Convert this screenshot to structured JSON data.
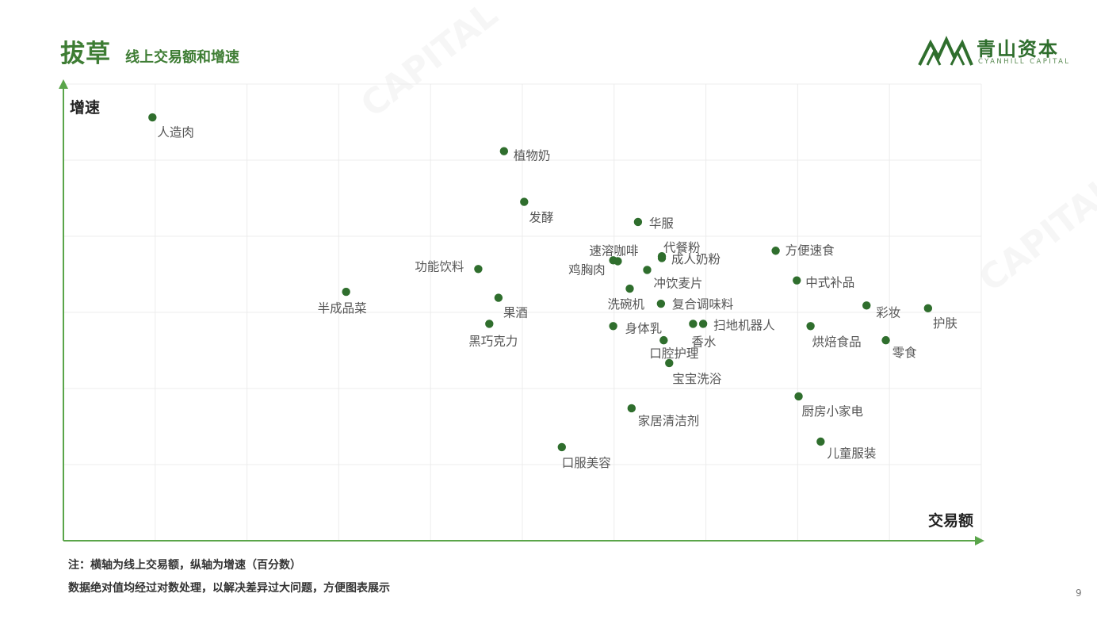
{
  "header": {
    "title": "拔草",
    "subtitle": "线上交易额和增速"
  },
  "logo": {
    "name_cn": "青山资本",
    "name_en": "CYANHILL CAPITAL",
    "brand_color": "#2f6e2d"
  },
  "chart_data": {
    "type": "scatter",
    "xlabel": "交易额",
    "ylabel": "增速",
    "xlim": [
      0,
      100
    ],
    "ylim": [
      0,
      100
    ],
    "grid": true,
    "color": "#2f6e2d",
    "points": [
      {
        "label": "人造肉",
        "x": 9.7,
        "y": 92.7
      },
      {
        "label": "植物奶",
        "x": 48.0,
        "y": 85.3
      },
      {
        "label": "发酵",
        "x": 50.2,
        "y": 74.2
      },
      {
        "label": "华服",
        "x": 62.6,
        "y": 69.8
      },
      {
        "label": "速溶咖啡",
        "x": 60.4,
        "y": 61.2
      },
      {
        "label": "代餐粉",
        "x": 65.2,
        "y": 61.9
      },
      {
        "label": "鸡胸肉",
        "x": 59.9,
        "y": 61.4
      },
      {
        "label": "成人奶粉",
        "x": 65.2,
        "y": 62.3
      },
      {
        "label": "冲饮麦片",
        "x": 63.6,
        "y": 59.3
      },
      {
        "label": "方便速食",
        "x": 77.6,
        "y": 63.5
      },
      {
        "label": "功能饮料",
        "x": 45.2,
        "y": 59.5
      },
      {
        "label": "中式补品",
        "x": 79.9,
        "y": 57.0
      },
      {
        "label": "半成品菜",
        "x": 30.8,
        "y": 54.5
      },
      {
        "label": "洗碗机",
        "x": 61.7,
        "y": 55.2
      },
      {
        "label": "果酒",
        "x": 47.4,
        "y": 53.2
      },
      {
        "label": "复合调味料",
        "x": 65.1,
        "y": 51.9
      },
      {
        "label": "彩妆",
        "x": 87.5,
        "y": 51.5
      },
      {
        "label": "护肤",
        "x": 94.2,
        "y": 50.9
      },
      {
        "label": "黑巧克力",
        "x": 46.4,
        "y": 47.5
      },
      {
        "label": "身体乳",
        "x": 59.9,
        "y": 47.0
      },
      {
        "label": "扫地机器人",
        "x": 69.7,
        "y": 47.5
      },
      {
        "label": "香水",
        "x": 68.6,
        "y": 47.5
      },
      {
        "label": "烘焙食品",
        "x": 81.4,
        "y": 47.0
      },
      {
        "label": "口腔护理",
        "x": 65.4,
        "y": 43.9
      },
      {
        "label": "零食",
        "x": 89.6,
        "y": 43.9
      },
      {
        "label": "宝宝洗浴",
        "x": 66.0,
        "y": 38.9
      },
      {
        "label": "厨房小家电",
        "x": 80.1,
        "y": 31.6
      },
      {
        "label": "家居清洁剂",
        "x": 61.9,
        "y": 29.0
      },
      {
        "label": "口服美容",
        "x": 54.3,
        "y": 20.5
      },
      {
        "label": "儿童服装",
        "x": 82.5,
        "y": 21.7
      }
    ]
  },
  "notes": {
    "line1": "注：横轴为线上交易额，纵轴为增速（百分数）",
    "line2": "数据绝对值均经过对数处理，以解决差异过大问题，方便图表展示"
  },
  "page_number": "9"
}
